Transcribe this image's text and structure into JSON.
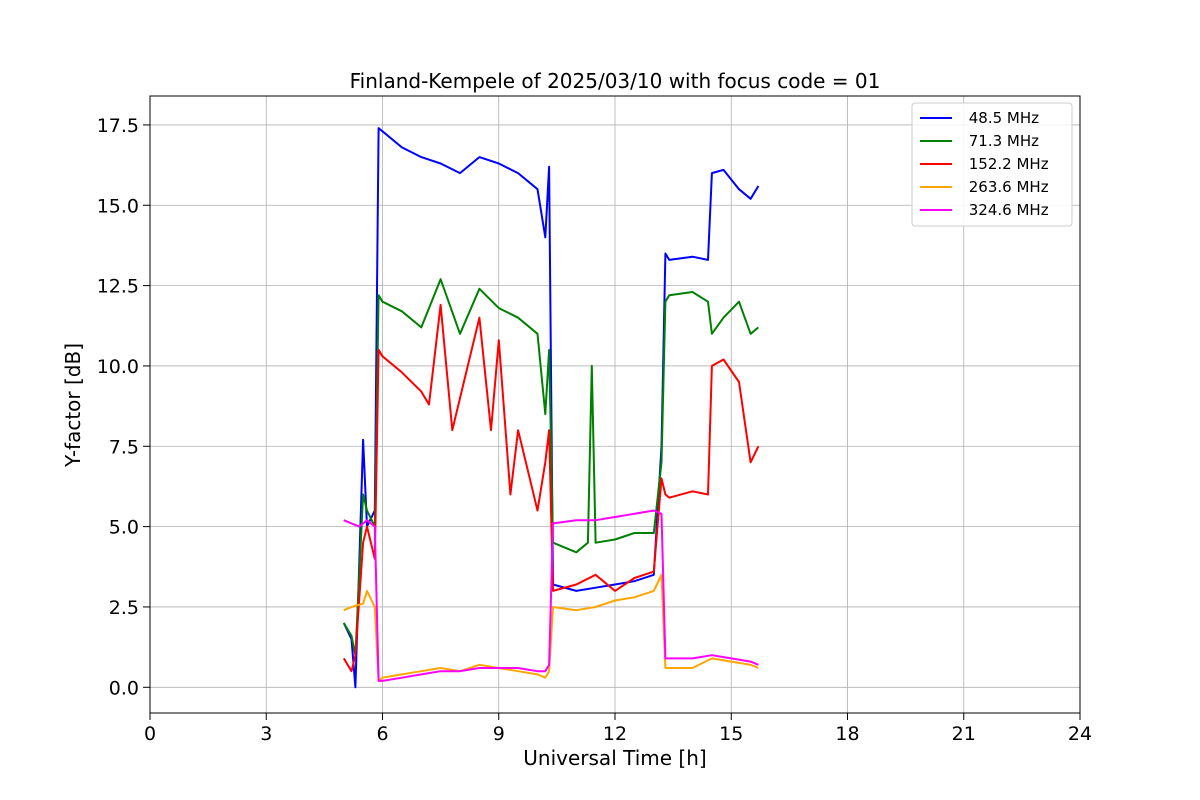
{
  "chart_data": {
    "type": "line",
    "title": "Finland-Kempele of 2025/03/10 with focus code = 01",
    "xlabel": "Universal Time [h]",
    "ylabel": "Y-factor [dB]",
    "xlim": [
      0,
      24
    ],
    "ylim": [
      -0.8,
      18.4
    ],
    "xticks": [
      0,
      3,
      6,
      9,
      12,
      15,
      18,
      21,
      24
    ],
    "xtick_labels": [
      "0",
      "3",
      "6",
      "9",
      "12",
      "15",
      "18",
      "21",
      "24"
    ],
    "yticks": [
      0.0,
      2.5,
      5.0,
      7.5,
      10.0,
      12.5,
      15.0,
      17.5
    ],
    "ytick_labels": [
      "0.0",
      "2.5",
      "5.0",
      "7.5",
      "10.0",
      "12.5",
      "15.0",
      "17.5"
    ],
    "grid": true,
    "legend_position": "top-right",
    "series": [
      {
        "name": " 48.5 MHz",
        "color": "#0000ff",
        "x": [
          5.0,
          5.2,
          5.3,
          5.5,
          5.6,
          5.8,
          5.9,
          6.0,
          6.5,
          7.0,
          7.5,
          8.0,
          8.5,
          9.0,
          9.5,
          10.0,
          10.2,
          10.3,
          10.4,
          11.0,
          11.5,
          12.0,
          12.5,
          13.0,
          13.2,
          13.3,
          13.4,
          14.0,
          14.4,
          14.5,
          14.8,
          15.2,
          15.5,
          15.7
        ],
        "y": [
          2.0,
          1.5,
          0.0,
          7.7,
          5.0,
          5.5,
          17.4,
          17.3,
          16.8,
          16.5,
          16.3,
          16.0,
          16.5,
          16.3,
          16.0,
          15.5,
          14.0,
          16.2,
          3.2,
          3.0,
          3.1,
          3.2,
          3.3,
          3.5,
          7.5,
          13.5,
          13.3,
          13.4,
          13.3,
          16.0,
          16.1,
          15.5,
          15.2,
          15.6
        ]
      },
      {
        "name": " 71.3 MHz",
        "color": "#008000",
        "x": [
          5.0,
          5.2,
          5.3,
          5.5,
          5.6,
          5.8,
          5.9,
          6.0,
          6.5,
          7.0,
          7.5,
          8.0,
          8.5,
          9.0,
          9.5,
          10.0,
          10.2,
          10.3,
          10.4,
          11.0,
          11.3,
          11.4,
          11.5,
          12.0,
          12.5,
          13.0,
          13.2,
          13.3,
          13.4,
          14.0,
          14.4,
          14.5,
          14.8,
          15.2,
          15.5,
          15.7
        ],
        "y": [
          2.0,
          1.6,
          1.0,
          6.0,
          5.5,
          5.0,
          12.2,
          12.0,
          11.7,
          11.2,
          12.7,
          11.0,
          12.4,
          11.8,
          11.5,
          11.0,
          8.5,
          10.5,
          4.5,
          4.2,
          4.5,
          10.0,
          4.5,
          4.6,
          4.8,
          4.8,
          7.0,
          12.0,
          12.2,
          12.3,
          12.0,
          11.0,
          11.5,
          12.0,
          11.0,
          11.2
        ]
      },
      {
        "name": " 152.2 MHz",
        "color": "#ff0000",
        "x": [
          5.0,
          5.2,
          5.3,
          5.5,
          5.6,
          5.8,
          5.9,
          6.0,
          6.5,
          7.0,
          7.2,
          7.5,
          7.8,
          8.0,
          8.5,
          8.8,
          9.0,
          9.3,
          9.5,
          10.0,
          10.2,
          10.3,
          10.4,
          11.0,
          11.5,
          12.0,
          12.5,
          13.0,
          13.2,
          13.3,
          13.4,
          14.0,
          14.4,
          14.5,
          14.8,
          15.2,
          15.5,
          15.7
        ],
        "y": [
          0.9,
          0.5,
          1.0,
          4.5,
          5.0,
          4.0,
          10.5,
          10.3,
          9.8,
          9.2,
          8.8,
          11.9,
          8.0,
          9.0,
          11.5,
          8.0,
          10.8,
          6.0,
          8.0,
          5.5,
          7.0,
          8.0,
          3.0,
          3.2,
          3.5,
          3.0,
          3.4,
          3.6,
          6.5,
          6.0,
          5.9,
          6.1,
          6.0,
          10.0,
          10.2,
          9.5,
          7.0,
          7.5
        ]
      },
      {
        "name": " 263.6 MHz",
        "color": "#ffa500",
        "x": [
          5.0,
          5.2,
          5.5,
          5.6,
          5.8,
          5.9,
          6.0,
          6.5,
          7.0,
          7.5,
          8.0,
          8.5,
          9.0,
          9.5,
          10.0,
          10.2,
          10.3,
          10.4,
          11.0,
          11.5,
          12.0,
          12.5,
          13.0,
          13.2,
          13.3,
          13.4,
          14.0,
          14.5,
          15.0,
          15.5,
          15.7
        ],
        "y": [
          2.4,
          2.5,
          2.6,
          3.0,
          2.5,
          0.2,
          0.3,
          0.4,
          0.5,
          0.6,
          0.5,
          0.7,
          0.6,
          0.5,
          0.4,
          0.3,
          0.5,
          2.5,
          2.4,
          2.5,
          2.7,
          2.8,
          3.0,
          3.5,
          0.6,
          0.6,
          0.6,
          0.9,
          0.8,
          0.7,
          0.6
        ]
      },
      {
        "name": " 324.6 MHz",
        "color": "#ff00ff",
        "x": [
          5.0,
          5.2,
          5.4,
          5.6,
          5.8,
          5.9,
          6.0,
          6.5,
          7.0,
          7.5,
          8.0,
          8.5,
          9.0,
          9.5,
          10.0,
          10.2,
          10.3,
          10.4,
          11.0,
          11.5,
          12.0,
          12.5,
          13.0,
          13.2,
          13.3,
          13.4,
          14.0,
          14.5,
          15.0,
          15.5,
          15.7
        ],
        "y": [
          5.2,
          5.1,
          5.0,
          5.2,
          5.0,
          0.2,
          0.2,
          0.3,
          0.4,
          0.5,
          0.5,
          0.6,
          0.6,
          0.6,
          0.5,
          0.5,
          0.7,
          5.1,
          5.2,
          5.2,
          5.3,
          5.4,
          5.5,
          5.4,
          0.9,
          0.9,
          0.9,
          1.0,
          0.9,
          0.8,
          0.7
        ]
      }
    ]
  }
}
